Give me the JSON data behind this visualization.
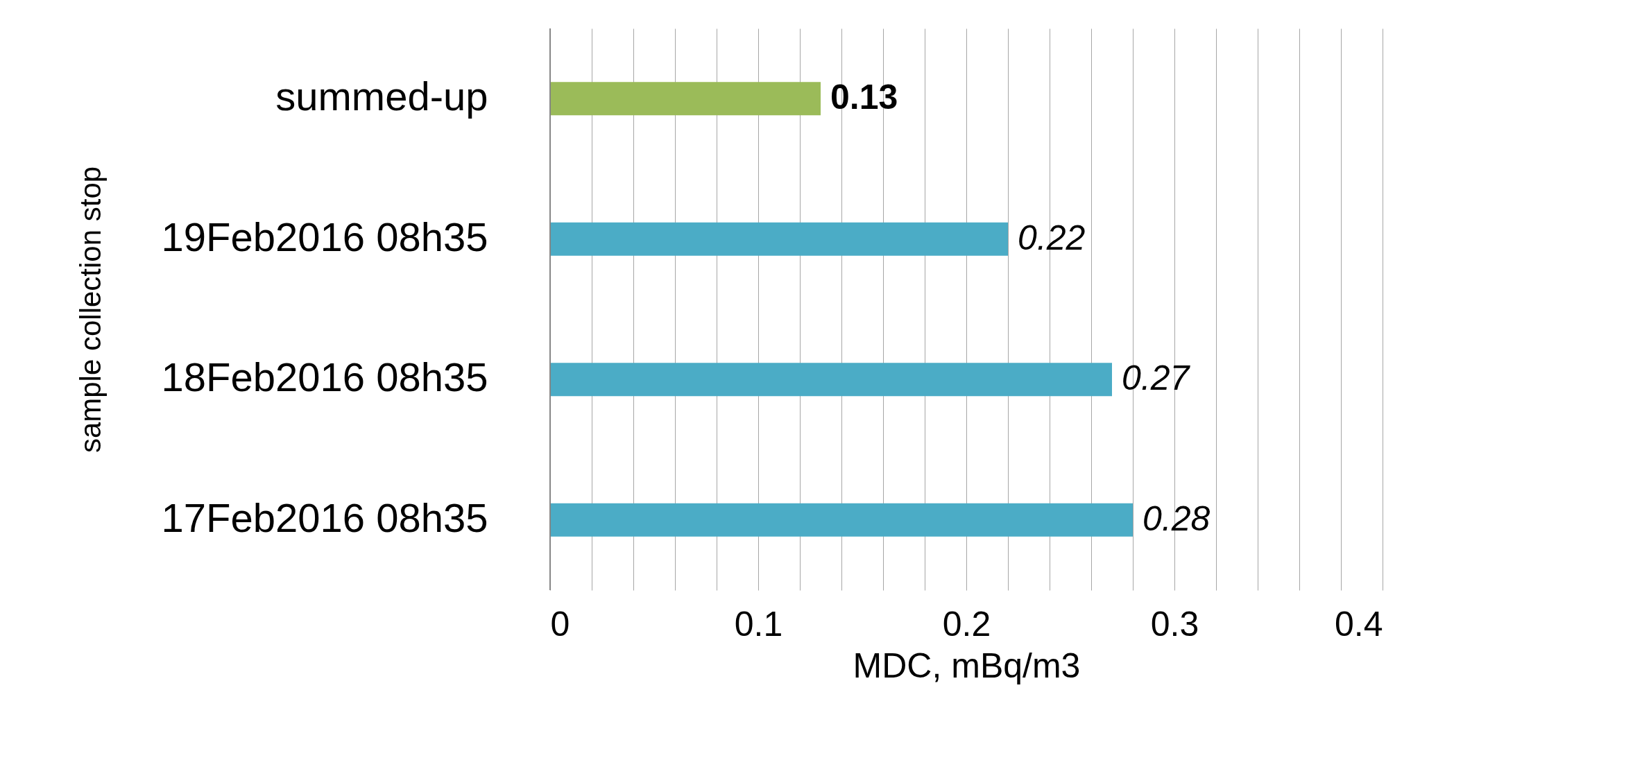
{
  "chart_data": {
    "type": "bar",
    "orientation": "horizontal",
    "categories": [
      "summed-up",
      "19Feb2016 08h35",
      "18Feb2016 08h35",
      "17Feb2016 08h35"
    ],
    "values": [
      0.13,
      0.22,
      0.27,
      0.28
    ],
    "colors": [
      "#9bbb59",
      "#4bacc6",
      "#4bacc6",
      "#4bacc6"
    ],
    "data_labels": true,
    "xlabel": "MDC, mBq/m3",
    "ylabel": "sample collection stop",
    "xlim": [
      0,
      0.4
    ],
    "xticks": [
      0,
      {
        "value": 0.02,
        "label": null
      },
      {
        "value": 0.04,
        "label": null
      },
      {
        "value": 0.06,
        "label": null
      },
      {
        "value": 0.08,
        "label": null
      },
      0.1,
      {
        "value": 0.12,
        "label": null
      },
      {
        "value": 0.14,
        "label": null
      },
      {
        "value": 0.16,
        "label": null
      },
      {
        "value": 0.18,
        "label": null
      },
      0.2,
      {
        "value": 0.22,
        "label": null
      },
      {
        "value": 0.24,
        "label": null
      },
      {
        "value": 0.26,
        "label": null
      },
      {
        "value": 0.28,
        "label": null
      },
      0.3,
      {
        "value": 0.32,
        "label": null
      },
      {
        "value": 0.34,
        "label": null
      },
      {
        "value": 0.36,
        "label": null
      },
      {
        "value": 0.38,
        "label": null
      },
      0.4
    ],
    "grid": "x"
  }
}
